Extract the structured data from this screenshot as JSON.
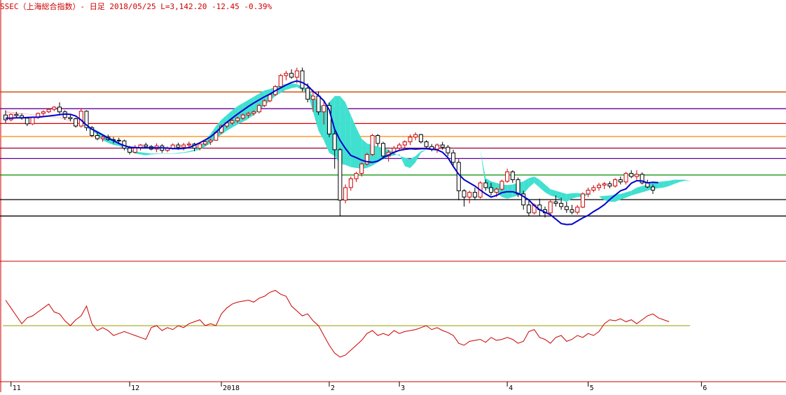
{
  "header": {
    "title": "SSEC（上海総合指数）- 日足 2018/05/25 L=3,142.20 -12.45 -0.39%"
  },
  "colors": {
    "up_candle": "#cc0000",
    "down_candle": "#000000",
    "moving_average": "#0000cc",
    "cloud_bearish": "#40e0d0",
    "cloud_bullish": "#ffc0cb",
    "oscillator": "#cc0000",
    "oscillator_midline": "#999900",
    "panel_divider": "#cc0000"
  },
  "chart_data": [
    {
      "type": "candlestick",
      "ylim": [
        2950,
        3700
      ],
      "grid": false,
      "x_tick_labels": [
        {
          "label": "11",
          "index": 1
        },
        {
          "label": "12",
          "index": 23
        },
        {
          "label": "2018",
          "index": 40
        },
        {
          "label": "2",
          "index": 60
        },
        {
          "label": "3",
          "index": 73
        },
        {
          "label": "4",
          "index": 93
        },
        {
          "label": "5",
          "index": 108
        },
        {
          "label": "6",
          "index": 129
        }
      ],
      "horizontal_levels": [
        {
          "value": 3453,
          "color": "#cc4400"
        },
        {
          "value": 3400,
          "color": "#660099"
        },
        {
          "value": 3353,
          "color": "#dd0000"
        },
        {
          "value": 3312,
          "color": "#ff8800"
        },
        {
          "value": 3275,
          "color": "#990033"
        },
        {
          "value": 3242,
          "color": "#660099"
        },
        {
          "value": 3190,
          "color": "#008800"
        },
        {
          "value": 3112,
          "color": "#000000"
        },
        {
          "value": 3060,
          "color": "#000000"
        }
      ],
      "cloud_upper": [
        3388,
        3386,
        3384,
        3383,
        3382,
        3380,
        3378,
        3376,
        3374,
        3372,
        3370,
        3365,
        3360,
        3355,
        3350,
        3345,
        3338,
        3330,
        3320,
        3312,
        3302,
        3290,
        3280,
        3272,
        3265,
        3262,
        3260,
        3258,
        3258,
        3258,
        3258,
        3258,
        3260,
        3262,
        3265,
        3270,
        3280,
        3300,
        3320,
        3345,
        3365,
        3380,
        3395,
        3408,
        3418,
        3428,
        3438,
        3448,
        3458,
        3462,
        3470,
        3475,
        3478,
        3480,
        3478,
        3470,
        3460,
        3440,
        3420,
        3400,
        3420,
        3440,
        3440,
        3420,
        3380,
        3340,
        3305,
        3290,
        3285,
        3280,
        3275,
        3270,
        3260,
        3250,
        3245,
        3240,
        3250,
        3265,
        3270,
        3275,
        3283,
        3287,
        3290,
        3288,
        3286,
        3286,
        3285,
        3280,
        3270,
        3180,
        3170,
        3165,
        3160,
        3158,
        3160,
        3165,
        3170,
        3180,
        3185,
        3175,
        3160,
        3145,
        3140,
        3135,
        3130,
        3132,
        3133,
        3130,
        3130,
        3125,
        3122,
        3124,
        3125,
        3128,
        3130,
        3135,
        3140,
        3150,
        3155,
        3160,
        3165,
        3168,
        3170,
        3172,
        3175,
        3175,
        3175,
        3170
      ],
      "cloud_lower": [
        3392,
        3390,
        3388,
        3386,
        3384,
        3382,
        3380,
        3378,
        3376,
        3374,
        3372,
        3368,
        3362,
        3356,
        3350,
        3340,
        3330,
        3318,
        3300,
        3292,
        3285,
        3282,
        3275,
        3265,
        3258,
        3255,
        3252,
        3255,
        3256,
        3257,
        3257,
        3257,
        3258,
        3260,
        3262,
        3266,
        3270,
        3280,
        3290,
        3305,
        3318,
        3330,
        3340,
        3350,
        3358,
        3368,
        3380,
        3395,
        3410,
        3425,
        3440,
        3450,
        3460,
        3465,
        3468,
        3460,
        3450,
        3390,
        3330,
        3300,
        3260,
        3250,
        3225,
        3222,
        3215,
        3212,
        3210,
        3212,
        3220,
        3230,
        3240,
        3248,
        3252,
        3256,
        3218,
        3212,
        3230,
        3260,
        3270,
        3275,
        3280,
        3287,
        3290,
        3288,
        3286,
        3286,
        3285,
        3280,
        3270,
        3150,
        3140,
        3135,
        3120,
        3115,
        3120,
        3125,
        3130,
        3150,
        3165,
        3150,
        3135,
        3125,
        3120,
        3110,
        3105,
        3115,
        3120,
        3120,
        3128,
        3125,
        3122,
        3110,
        3105,
        3105,
        3112,
        3118,
        3125,
        3130,
        3135,
        3140,
        3145,
        3148,
        3150,
        3155,
        3162,
        3168,
        3172,
        3170
      ],
      "moving_average": [
        3370,
        3370,
        3371,
        3371,
        3372,
        3373,
        3373,
        3375,
        3377,
        3379,
        3381,
        3383,
        3382,
        3377,
        3364,
        3348,
        3335,
        3326,
        3317,
        3307,
        3299,
        3290,
        3283,
        3278,
        3277,
        3276,
        3276,
        3276,
        3276,
        3276,
        3275,
        3274,
        3273,
        3274,
        3277,
        3284,
        3292,
        3301,
        3311,
        3325,
        3342,
        3357,
        3370,
        3383,
        3395,
        3407,
        3418,
        3428,
        3438,
        3446,
        3457,
        3466,
        3475,
        3483,
        3488,
        3483,
        3473,
        3455,
        3442,
        3425,
        3396,
        3335,
        3300,
        3274,
        3252,
        3245,
        3237,
        3232,
        3230,
        3234,
        3245,
        3253,
        3262,
        3268,
        3271,
        3273,
        3272,
        3273,
        3273,
        3271,
        3270,
        3262,
        3245,
        3217,
        3192,
        3175,
        3165,
        3155,
        3142,
        3130,
        3120,
        3125,
        3134,
        3137,
        3137,
        3132,
        3122,
        3111,
        3093,
        3080,
        3072,
        3064,
        3050,
        3036,
        3033,
        3034,
        3044,
        3054,
        3062,
        3074,
        3084,
        3096,
        3112,
        3126,
        3140,
        3146,
        3164,
        3172,
        3171,
        3165,
        3167,
        3166
      ],
      "candles": [
        [
          3380,
          3395,
          3355,
          3365
        ],
        [
          3365,
          3385,
          3360,
          3382
        ],
        [
          3382,
          3390,
          3370,
          3378
        ],
        [
          3378,
          3385,
          3365,
          3370
        ],
        [
          3370,
          3372,
          3345,
          3352
        ],
        [
          3352,
          3375,
          3348,
          3372
        ],
        [
          3372,
          3388,
          3368,
          3385
        ],
        [
          3385,
          3395,
          3378,
          3390
        ],
        [
          3390,
          3402,
          3386,
          3398
        ],
        [
          3398,
          3408,
          3392,
          3405
        ],
        [
          3405,
          3420,
          3380,
          3390
        ],
        [
          3390,
          3395,
          3365,
          3372
        ],
        [
          3372,
          3380,
          3360,
          3368
        ],
        [
          3368,
          3372,
          3340,
          3345
        ],
        [
          3345,
          3400,
          3340,
          3392
        ],
        [
          3392,
          3395,
          3330,
          3340
        ],
        [
          3340,
          3345,
          3310,
          3315
        ],
        [
          3315,
          3325,
          3300,
          3305
        ],
        [
          3305,
          3315,
          3295,
          3310
        ],
        [
          3310,
          3318,
          3298,
          3302
        ],
        [
          3302,
          3310,
          3290,
          3300
        ],
        [
          3300,
          3308,
          3288,
          3298
        ],
        [
          3298,
          3302,
          3268,
          3275
        ],
        [
          3275,
          3282,
          3255,
          3262
        ],
        [
          3262,
          3285,
          3258,
          3275
        ],
        [
          3275,
          3288,
          3268,
          3285
        ],
        [
          3285,
          3292,
          3275,
          3280
        ],
        [
          3280,
          3285,
          3268,
          3272
        ],
        [
          3272,
          3290,
          3262,
          3282
        ],
        [
          3282,
          3288,
          3260,
          3268
        ],
        [
          3268,
          3280,
          3262,
          3275
        ],
        [
          3275,
          3290,
          3270,
          3285
        ],
        [
          3285,
          3292,
          3270,
          3278
        ],
        [
          3278,
          3292,
          3268,
          3285
        ],
        [
          3285,
          3296,
          3278,
          3288
        ],
        [
          3288,
          3292,
          3265,
          3275
        ],
        [
          3275,
          3292,
          3268,
          3288
        ],
        [
          3288,
          3300,
          3282,
          3295
        ],
        [
          3295,
          3305,
          3285,
          3300
        ],
        [
          3300,
          3330,
          3298,
          3325
        ],
        [
          3325,
          3350,
          3320,
          3345
        ],
        [
          3345,
          3360,
          3338,
          3355
        ],
        [
          3355,
          3368,
          3348,
          3362
        ],
        [
          3362,
          3375,
          3355,
          3370
        ],
        [
          3370,
          3385,
          3365,
          3380
        ],
        [
          3380,
          3390,
          3372,
          3385
        ],
        [
          3385,
          3395,
          3378,
          3390
        ],
        [
          3390,
          3415,
          3385,
          3410
        ],
        [
          3410,
          3430,
          3405,
          3425
        ],
        [
          3425,
          3450,
          3420,
          3445
        ],
        [
          3445,
          3475,
          3440,
          3470
        ],
        [
          3470,
          3510,
          3465,
          3505
        ],
        [
          3505,
          3520,
          3490,
          3512
        ],
        [
          3512,
          3525,
          3495,
          3500
        ],
        [
          3500,
          3530,
          3480,
          3520
        ],
        [
          3520,
          3530,
          3455,
          3465
        ],
        [
          3465,
          3480,
          3420,
          3430
        ],
        [
          3430,
          3460,
          3390,
          3440
        ],
        [
          3440,
          3455,
          3380,
          3390
        ],
        [
          3390,
          3425,
          3350,
          3410
        ],
        [
          3410,
          3420,
          3310,
          3320
        ],
        [
          3320,
          3330,
          3210,
          3270
        ],
        [
          3270,
          3275,
          3060,
          3110
        ],
        [
          3110,
          3160,
          3100,
          3150
        ],
        [
          3150,
          3185,
          3140,
          3178
        ],
        [
          3178,
          3200,
          3168,
          3195
        ],
        [
          3195,
          3230,
          3185,
          3225
        ],
        [
          3225,
          3260,
          3220,
          3255
        ],
        [
          3255,
          3320,
          3250,
          3315
        ],
        [
          3315,
          3320,
          3280,
          3290
        ],
        [
          3290,
          3295,
          3240,
          3250
        ],
        [
          3250,
          3270,
          3232,
          3262
        ],
        [
          3262,
          3282,
          3255,
          3275
        ],
        [
          3275,
          3292,
          3268,
          3285
        ],
        [
          3285,
          3300,
          3275,
          3295
        ],
        [
          3295,
          3318,
          3285,
          3310
        ],
        [
          3310,
          3325,
          3300,
          3318
        ],
        [
          3318,
          3320,
          3290,
          3295
        ],
        [
          3295,
          3300,
          3275,
          3280
        ],
        [
          3280,
          3288,
          3265,
          3272
        ],
        [
          3272,
          3290,
          3260,
          3285
        ],
        [
          3285,
          3295,
          3270,
          3278
        ],
        [
          3278,
          3285,
          3250,
          3260
        ],
        [
          3260,
          3270,
          3220,
          3230
        ],
        [
          3230,
          3240,
          3110,
          3140
        ],
        [
          3140,
          3145,
          3090,
          3120
        ],
        [
          3120,
          3140,
          3100,
          3135
        ],
        [
          3135,
          3150,
          3110,
          3120
        ],
        [
          3120,
          3170,
          3115,
          3165
        ],
        [
          3165,
          3175,
          3140,
          3150
        ],
        [
          3150,
          3165,
          3125,
          3135
        ],
        [
          3135,
          3150,
          3120,
          3145
        ],
        [
          3145,
          3175,
          3140,
          3170
        ],
        [
          3170,
          3210,
          3165,
          3200
        ],
        [
          3200,
          3205,
          3165,
          3175
        ],
        [
          3175,
          3182,
          3120,
          3130
        ],
        [
          3130,
          3140,
          3080,
          3095
        ],
        [
          3095,
          3110,
          3060,
          3070
        ],
        [
          3070,
          3100,
          3065,
          3095
        ],
        [
          3095,
          3115,
          3060,
          3080
        ],
        [
          3080,
          3090,
          3055,
          3070
        ],
        [
          3070,
          3110,
          3062,
          3105
        ],
        [
          3105,
          3125,
          3090,
          3100
        ],
        [
          3100,
          3118,
          3080,
          3090
        ],
        [
          3090,
          3105,
          3070,
          3080
        ],
        [
          3080,
          3095,
          3065,
          3072
        ],
        [
          3072,
          3095,
          3065,
          3088
        ],
        [
          3088,
          3135,
          3085,
          3130
        ],
        [
          3130,
          3150,
          3120,
          3142
        ],
        [
          3142,
          3158,
          3135,
          3150
        ],
        [
          3150,
          3165,
          3140,
          3158
        ],
        [
          3158,
          3168,
          3145,
          3162
        ],
        [
          3162,
          3170,
          3148,
          3155
        ],
        [
          3155,
          3180,
          3150,
          3175
        ],
        [
          3175,
          3185,
          3160,
          3168
        ],
        [
          3168,
          3200,
          3160,
          3195
        ],
        [
          3195,
          3205,
          3180,
          3185
        ],
        [
          3185,
          3205,
          3175,
          3192
        ],
        [
          3192,
          3198,
          3160,
          3165
        ],
        [
          3165,
          3175,
          3148,
          3152
        ],
        [
          3152,
          3160,
          3130,
          3142
        ]
      ]
    },
    {
      "type": "line",
      "ylim": [
        0,
        100
      ],
      "midline": 50,
      "values": [
        76,
        68,
        60,
        52,
        58,
        60,
        64,
        68,
        72,
        64,
        62,
        55,
        50,
        56,
        60,
        70,
        52,
        45,
        48,
        45,
        40,
        42,
        44,
        42,
        40,
        38,
        36,
        48,
        50,
        45,
        48,
        46,
        50,
        48,
        52,
        54,
        56,
        50,
        52,
        50,
        62,
        68,
        72,
        74,
        75,
        76,
        74,
        78,
        80,
        84,
        86,
        82,
        80,
        70,
        65,
        60,
        62,
        55,
        50,
        40,
        30,
        22,
        18,
        20,
        25,
        30,
        35,
        42,
        45,
        40,
        42,
        40,
        45,
        42,
        44,
        45,
        46,
        48,
        50,
        46,
        48,
        45,
        43,
        40,
        32,
        30,
        34,
        35,
        36,
        33,
        38,
        35,
        36,
        38,
        36,
        32,
        34,
        44,
        46,
        38,
        36,
        32,
        38,
        40,
        34,
        36,
        40,
        38,
        42,
        40,
        44,
        52,
        56,
        55,
        57,
        54,
        56,
        52,
        56,
        60,
        62,
        58,
        56,
        54
      ]
    }
  ]
}
